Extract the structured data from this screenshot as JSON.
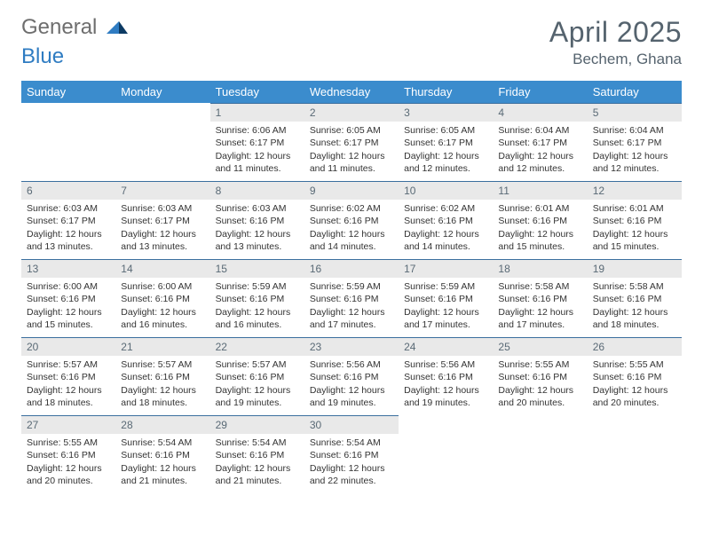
{
  "logo": {
    "word1": "General",
    "word2": "Blue"
  },
  "title": "April 2025",
  "location": "Bechem, Ghana",
  "header_bg": "#3b8ccd",
  "header_text_color": "#ffffff",
  "daynum_bg": "#e9e9e9",
  "daynum_border": "#3b6f9e",
  "weekdays": [
    "Sunday",
    "Monday",
    "Tuesday",
    "Wednesday",
    "Thursday",
    "Friday",
    "Saturday"
  ],
  "weeks": [
    [
      null,
      null,
      {
        "n": "1",
        "sr": "6:06 AM",
        "ss": "6:17 PM",
        "dl": "12 hours and 11 minutes."
      },
      {
        "n": "2",
        "sr": "6:05 AM",
        "ss": "6:17 PM",
        "dl": "12 hours and 11 minutes."
      },
      {
        "n": "3",
        "sr": "6:05 AM",
        "ss": "6:17 PM",
        "dl": "12 hours and 12 minutes."
      },
      {
        "n": "4",
        "sr": "6:04 AM",
        "ss": "6:17 PM",
        "dl": "12 hours and 12 minutes."
      },
      {
        "n": "5",
        "sr": "6:04 AM",
        "ss": "6:17 PM",
        "dl": "12 hours and 12 minutes."
      }
    ],
    [
      {
        "n": "6",
        "sr": "6:03 AM",
        "ss": "6:17 PM",
        "dl": "12 hours and 13 minutes."
      },
      {
        "n": "7",
        "sr": "6:03 AM",
        "ss": "6:17 PM",
        "dl": "12 hours and 13 minutes."
      },
      {
        "n": "8",
        "sr": "6:03 AM",
        "ss": "6:16 PM",
        "dl": "12 hours and 13 minutes."
      },
      {
        "n": "9",
        "sr": "6:02 AM",
        "ss": "6:16 PM",
        "dl": "12 hours and 14 minutes."
      },
      {
        "n": "10",
        "sr": "6:02 AM",
        "ss": "6:16 PM",
        "dl": "12 hours and 14 minutes."
      },
      {
        "n": "11",
        "sr": "6:01 AM",
        "ss": "6:16 PM",
        "dl": "12 hours and 15 minutes."
      },
      {
        "n": "12",
        "sr": "6:01 AM",
        "ss": "6:16 PM",
        "dl": "12 hours and 15 minutes."
      }
    ],
    [
      {
        "n": "13",
        "sr": "6:00 AM",
        "ss": "6:16 PM",
        "dl": "12 hours and 15 minutes."
      },
      {
        "n": "14",
        "sr": "6:00 AM",
        "ss": "6:16 PM",
        "dl": "12 hours and 16 minutes."
      },
      {
        "n": "15",
        "sr": "5:59 AM",
        "ss": "6:16 PM",
        "dl": "12 hours and 16 minutes."
      },
      {
        "n": "16",
        "sr": "5:59 AM",
        "ss": "6:16 PM",
        "dl": "12 hours and 17 minutes."
      },
      {
        "n": "17",
        "sr": "5:59 AM",
        "ss": "6:16 PM",
        "dl": "12 hours and 17 minutes."
      },
      {
        "n": "18",
        "sr": "5:58 AM",
        "ss": "6:16 PM",
        "dl": "12 hours and 17 minutes."
      },
      {
        "n": "19",
        "sr": "5:58 AM",
        "ss": "6:16 PM",
        "dl": "12 hours and 18 minutes."
      }
    ],
    [
      {
        "n": "20",
        "sr": "5:57 AM",
        "ss": "6:16 PM",
        "dl": "12 hours and 18 minutes."
      },
      {
        "n": "21",
        "sr": "5:57 AM",
        "ss": "6:16 PM",
        "dl": "12 hours and 18 minutes."
      },
      {
        "n": "22",
        "sr": "5:57 AM",
        "ss": "6:16 PM",
        "dl": "12 hours and 19 minutes."
      },
      {
        "n": "23",
        "sr": "5:56 AM",
        "ss": "6:16 PM",
        "dl": "12 hours and 19 minutes."
      },
      {
        "n": "24",
        "sr": "5:56 AM",
        "ss": "6:16 PM",
        "dl": "12 hours and 19 minutes."
      },
      {
        "n": "25",
        "sr": "5:55 AM",
        "ss": "6:16 PM",
        "dl": "12 hours and 20 minutes."
      },
      {
        "n": "26",
        "sr": "5:55 AM",
        "ss": "6:16 PM",
        "dl": "12 hours and 20 minutes."
      }
    ],
    [
      {
        "n": "27",
        "sr": "5:55 AM",
        "ss": "6:16 PM",
        "dl": "12 hours and 20 minutes."
      },
      {
        "n": "28",
        "sr": "5:54 AM",
        "ss": "6:16 PM",
        "dl": "12 hours and 21 minutes."
      },
      {
        "n": "29",
        "sr": "5:54 AM",
        "ss": "6:16 PM",
        "dl": "12 hours and 21 minutes."
      },
      {
        "n": "30",
        "sr": "5:54 AM",
        "ss": "6:16 PM",
        "dl": "12 hours and 22 minutes."
      },
      null,
      null,
      null
    ]
  ],
  "labels": {
    "sunrise": "Sunrise:",
    "sunset": "Sunset:",
    "daylight": "Daylight:"
  }
}
